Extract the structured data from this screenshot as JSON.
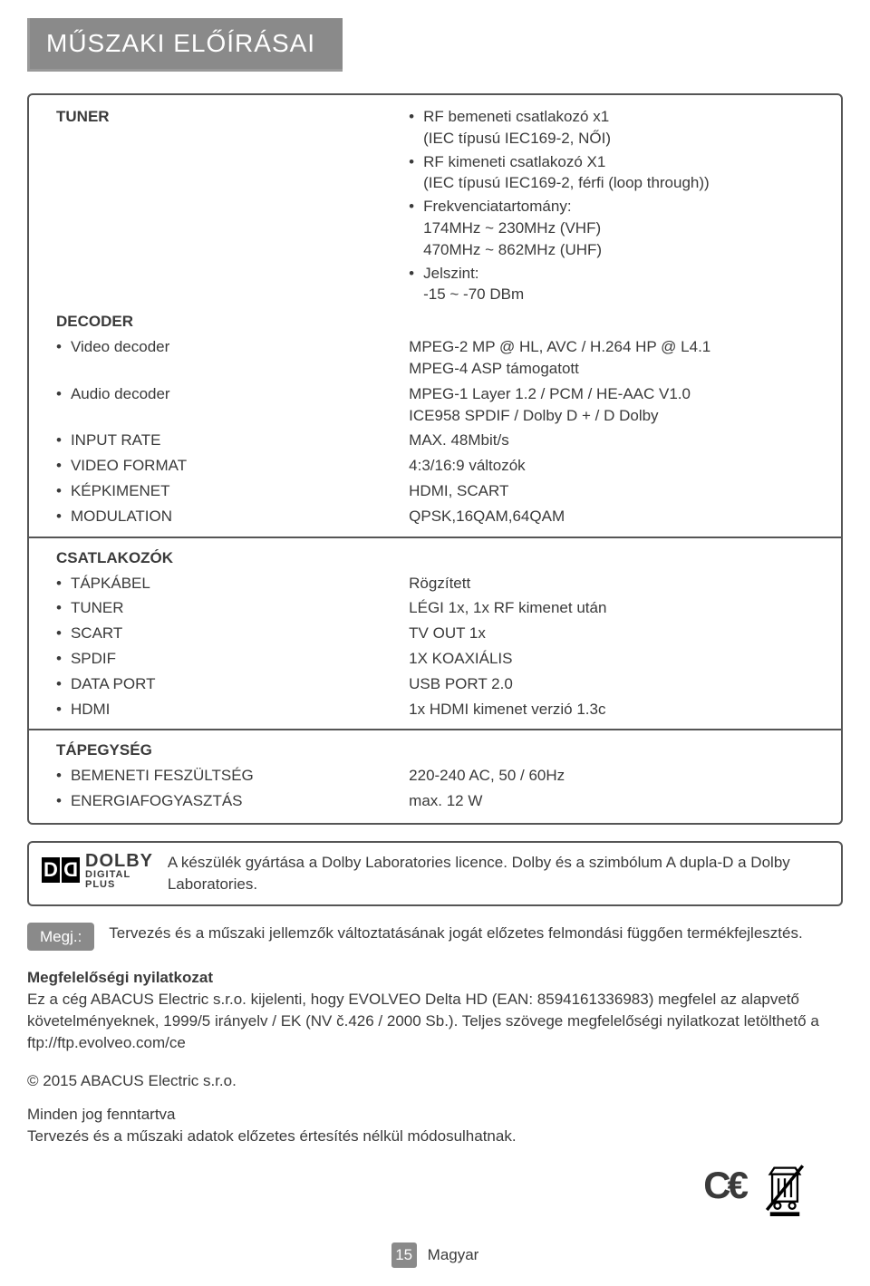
{
  "title": "MŰSZAKI ELŐÍRÁSAI",
  "tuner_label": "TUNER",
  "tuner_items": [
    "RF bemeneti csatlakozó x1\n(IEC típusú IEC169-2, NŐI)",
    "RF kimeneti csatlakozó X1\n(IEC típusú IEC169-2, férfi (loop through))",
    "Frekvenciatartomány:\n174MHz ~ 230MHz (VHF)\n470MHz ~ 862MHz (UHF)",
    "Jelszint:\n-15 ~ -70 DBm"
  ],
  "decoder_label": "DECODER",
  "decoder_rows": [
    {
      "l": "Video decoder",
      "r": "MPEG-2 MP @ HL, AVC / H.264 HP @ L4.1\nMPEG-4 ASP támogatott"
    },
    {
      "l": "Audio decoder",
      "r": "MPEG-1 Layer 1.2 / PCM / HE-AAC V1.0\nICE958 SPDIF / Dolby D + / D Dolby"
    },
    {
      "l": "INPUT RATE",
      "r": "MAX. 48Mbit/s"
    },
    {
      "l": "VIDEO FORMAT",
      "r": "4:3/16:9 változók"
    },
    {
      "l": "KÉPKIMENET",
      "r": "HDMI, SCART"
    },
    {
      "l": "MODULATION",
      "r": "QPSK,16QAM,64QAM"
    }
  ],
  "conn_label": "CSATLAKOZÓK",
  "conn_rows": [
    {
      "l": "TÁPKÁBEL",
      "r": "Rögzített"
    },
    {
      "l": "TUNER",
      "r": "LÉGI 1x, 1x RF kimenet után"
    },
    {
      "l": "SCART",
      "r": "TV OUT 1x"
    },
    {
      "l": "SPDIF",
      "r": "1X KOAXIÁLIS"
    },
    {
      "l": "DATA PORT",
      "r": "USB PORT 2.0"
    },
    {
      "l": "HDMI",
      "r": "1x HDMI kimenet verzió 1.3c"
    }
  ],
  "power_label": "TÁPEGYSÉG",
  "power_rows": [
    {
      "l": "BEMENETI FESZÜLTSÉG",
      "r": "220-240 AC, 50 / 60Hz"
    },
    {
      "l": "ENERGIAFOGYASZTÁS",
      "r": "max. 12 W"
    }
  ],
  "dolby": {
    "brand": "DOLBY",
    "sub": "DIGITAL PLUS",
    "text": "A készülék gyártása a Dolby Laboratories licence. Dolby és a szimbólum A dupla-D a Dolby Laboratories."
  },
  "note": {
    "tag": "Megj.:",
    "text": "Tervezés és a műszaki jellemzők változtatásának jogát előzetes felmondási függően termékfejlesztés."
  },
  "compliance_title": "Megfelelőségi nyilatkozat",
  "compliance_text": "Ez a cég ABACUS Electric s.r.o. kijelenti, hogy EVOLVEO Delta HD (EAN: 8594161336983) megfelel az alapvető követelményeknek, 1999/5 irányelv / EK (NV č.426 / 2000 Sb.). Teljes szövege megfelelőségi nyilatkozat letölthető a ftp://ftp.evolveo.com/ce",
  "copyright": "© 2015  ABACUS Electric s.r.o.",
  "rights1": "Minden jog fenntartva",
  "rights2": "Tervezés és a műszaki adatok előzetes értesítés nélkül módosulhatnak.",
  "page_num": "15",
  "lang": "Magyar",
  "colors": {
    "gray": "#8a8a8a",
    "text": "#3a3a3a",
    "border": "#555"
  }
}
